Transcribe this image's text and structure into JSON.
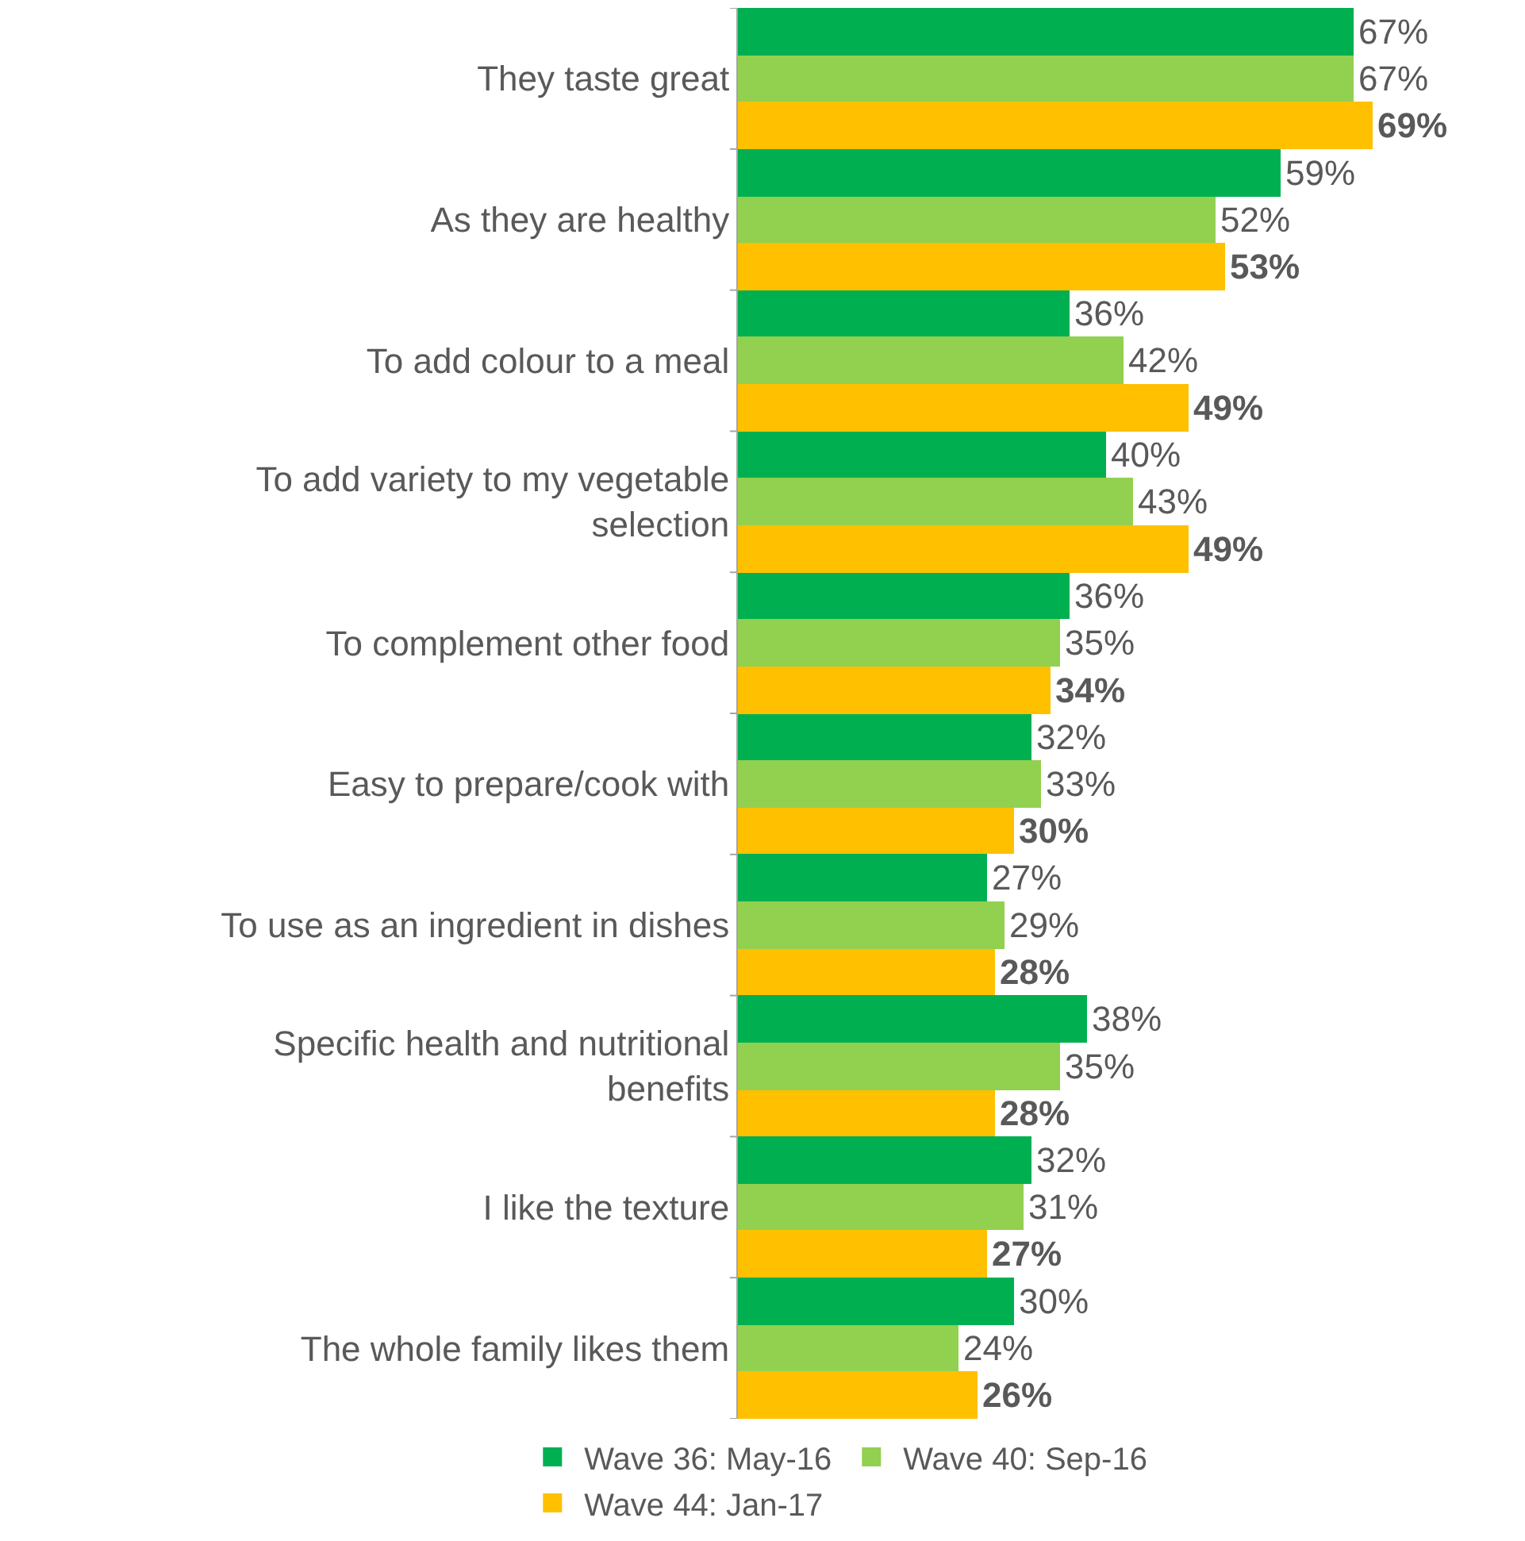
{
  "chart_data": {
    "type": "bar",
    "orientation": "horizontal",
    "legend": "bottom",
    "categories": [
      "They taste great",
      "As they are healthy",
      "To add colour to a meal",
      "To add variety to my vegetable selection",
      "To complement other food",
      "Easy to prepare/cook with",
      "To use as an ingredient in dishes",
      "Specific health and nutritional benefits",
      "I like the texture",
      "The whole family likes them"
    ],
    "series": [
      {
        "name": "Wave 36: May-16",
        "color": "#00b050",
        "values": [
          67,
          59,
          36,
          40,
          36,
          32,
          27,
          38,
          32,
          30
        ],
        "value_labels": [
          "67%",
          "59%",
          "36%",
          "40%",
          "36%",
          "32%",
          "27%",
          "38%",
          "32%",
          "30%"
        ]
      },
      {
        "name": "Wave 40: Sep-16",
        "color": "#92d050",
        "values": [
          67,
          52,
          42,
          43,
          35,
          33,
          29,
          35,
          31,
          24
        ],
        "value_labels": [
          "67%",
          "52%",
          "42%",
          "43%",
          "35%",
          "33%",
          "29%",
          "35%",
          "31%",
          "24%"
        ]
      },
      {
        "name": "Wave 44: Jan-17",
        "color": "#ffc000",
        "values": [
          69,
          53,
          49,
          49,
          34,
          30,
          28,
          28,
          27,
          26
        ],
        "value_labels": [
          "69%",
          "53%",
          "49%",
          "49%",
          "34%",
          "30%",
          "28%",
          "28%",
          "27%",
          "26%"
        ]
      }
    ]
  }
}
